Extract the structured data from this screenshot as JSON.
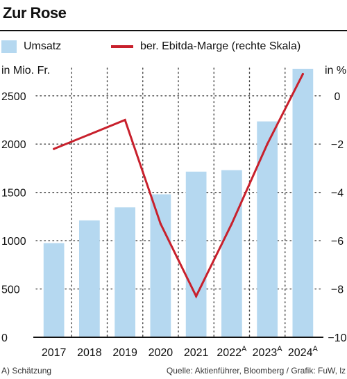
{
  "header": {
    "title": "Zur Rose"
  },
  "legend": {
    "bars_label": "Umsatz",
    "line_label": "ber. Ebitda-Marge (rechte Skala)"
  },
  "colors": {
    "bar": "#b5d8f0",
    "line": "#c8202c",
    "grid": "#444444",
    "axis": "#111111"
  },
  "footer": {
    "left": "A) Schätzung",
    "right": "Quelle: Aktienführer, Bloomberg / Grafik: FuW, lz"
  },
  "chart_data": {
    "type": "bar",
    "categories": [
      "2017",
      "2018",
      "2019",
      "2020",
      "2021",
      "2022",
      "2023",
      "2024"
    ],
    "category_superscripts": [
      "",
      "",
      "",
      "",
      "",
      "A",
      "A",
      "A"
    ],
    "grid": true,
    "series": [
      {
        "name": "Umsatz",
        "type": "bar",
        "axis": "left",
        "values": [
          975,
          1210,
          1345,
          1480,
          1715,
          1730,
          2235,
          2780
        ]
      },
      {
        "name": "ber. Ebitda-Marge (rechte Skala)",
        "type": "line",
        "axis": "right",
        "values": [
          -2.2,
          -1.6,
          -1.0,
          -5.3,
          -8.3,
          -5.3,
          -2.0,
          0.9
        ]
      }
    ],
    "y_left": {
      "label": "in Mio. Fr.",
      "ylim": [
        0,
        2700
      ],
      "ticks": [
        0,
        500,
        1000,
        1500,
        2000,
        2500
      ]
    },
    "y_right": {
      "label": "in %",
      "ylim": [
        -10,
        0.8
      ],
      "ticks": [
        0,
        -2,
        -4,
        -6,
        -8,
        -10
      ],
      "tick_labels": [
        "0",
        "−2",
        "−4",
        "−6",
        "−8",
        "−10"
      ]
    }
  }
}
